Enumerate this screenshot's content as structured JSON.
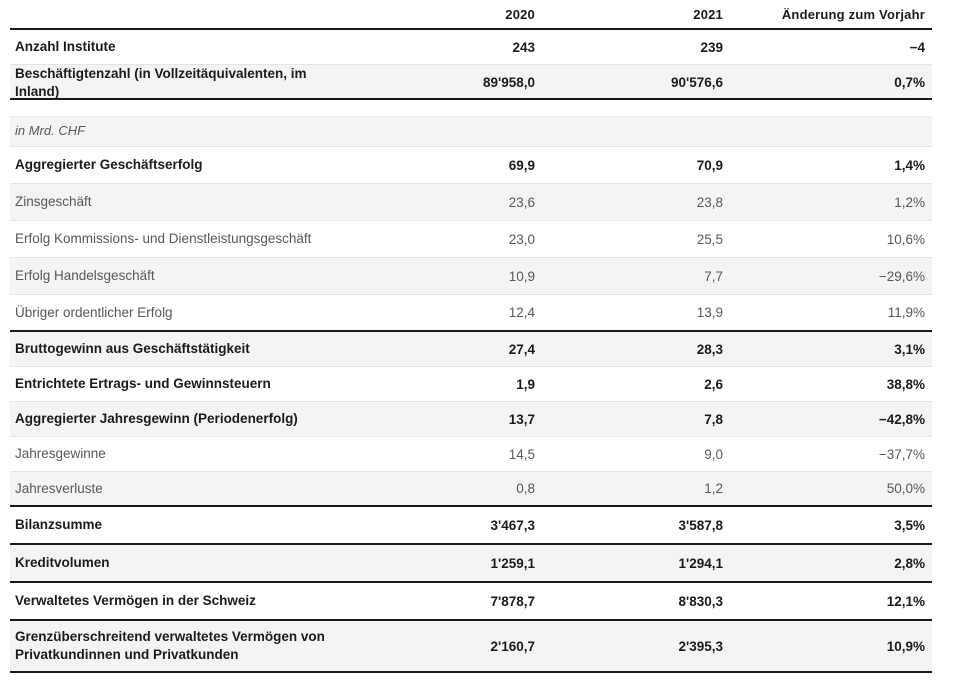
{
  "colors": {
    "text_primary": "#1a1b1e",
    "text_secondary": "#57585d",
    "row_alt_bg": "#f4f4f5",
    "divider_light": "#e4e4e6",
    "divider_dark": "#1a1a1a",
    "page_bg": "#ffffff"
  },
  "table": {
    "columns": [
      "",
      "2020",
      "2021",
      "Änderung zum Vorjahr"
    ],
    "rows": [
      {
        "label": "Anzahl Institute",
        "y2020": "243",
        "y2021": "239",
        "change": "−4",
        "bold": true,
        "italic": false,
        "bg": "white",
        "divider": "light",
        "size": "s",
        "spacer_after": false
      },
      {
        "label": "Beschäftigtenzahl (in Vollzeitäquivalenten, im Inland)",
        "y2020": "89'958,0",
        "y2021": "90'576,6",
        "change": "0,7%",
        "bold": true,
        "italic": false,
        "bg": "gray",
        "divider": "dark",
        "size": "s",
        "spacer_after": true
      },
      {
        "label": "in Mrd. CHF",
        "y2020": "",
        "y2021": "",
        "change": "",
        "bold": false,
        "italic": true,
        "bg": "gray",
        "divider": "light",
        "size": "sec",
        "spacer_after": false
      },
      {
        "label": "Aggregierter Geschäftserfolg",
        "y2020": "69,9",
        "y2021": "70,9",
        "change": "1,4%",
        "bold": true,
        "italic": false,
        "bg": "white",
        "divider": "light",
        "size": "m",
        "spacer_after": false
      },
      {
        "label": "Zinsgeschäft",
        "y2020": "23,6",
        "y2021": "23,8",
        "change": "1,2%",
        "bold": false,
        "italic": false,
        "bg": "gray",
        "divider": "light",
        "size": "m",
        "spacer_after": false
      },
      {
        "label": "Erfolg Kommissions- und Dienstleistungsgeschäft",
        "y2020": "23,0",
        "y2021": "25,5",
        "change": "10,6%",
        "bold": false,
        "italic": false,
        "bg": "white",
        "divider": "light",
        "size": "m",
        "spacer_after": false
      },
      {
        "label": "Erfolg Handelsgeschäft",
        "y2020": "10,9",
        "y2021": "7,7",
        "change": "−29,6%",
        "bold": false,
        "italic": false,
        "bg": "gray",
        "divider": "light",
        "size": "m",
        "spacer_after": false
      },
      {
        "label": "Übriger ordentlicher Erfolg",
        "y2020": "12,4",
        "y2021": "13,9",
        "change": "11,9%",
        "bold": false,
        "italic": false,
        "bg": "white",
        "divider": "dark",
        "size": "m",
        "spacer_after": false
      },
      {
        "label": "Bruttogewinn aus Geschäftstätigkeit",
        "y2020": "27,4",
        "y2021": "28,3",
        "change": "3,1%",
        "bold": true,
        "italic": false,
        "bg": "gray",
        "divider": "light",
        "size": "s",
        "spacer_after": false
      },
      {
        "label": "Entrichtete Ertrags- und Gewinnsteuern",
        "y2020": "1,9",
        "y2021": "2,6",
        "change": "38,8%",
        "bold": true,
        "italic": false,
        "bg": "white",
        "divider": "light",
        "size": "s",
        "spacer_after": false
      },
      {
        "label": "Aggregierter Jahresgewinn (Periodenerfolg)",
        "y2020": "13,7",
        "y2021": "7,8",
        "change": "−42,8%",
        "bold": true,
        "italic": false,
        "bg": "gray",
        "divider": "light",
        "size": "s",
        "spacer_after": false
      },
      {
        "label": "Jahresgewinne",
        "y2020": "14,5",
        "y2021": "9,0",
        "change": "−37,7%",
        "bold": false,
        "italic": false,
        "bg": "white",
        "divider": "light",
        "size": "s",
        "spacer_after": false
      },
      {
        "label": "Jahresverluste",
        "y2020": "0,8",
        "y2021": "1,2",
        "change": "50,0%",
        "bold": false,
        "italic": false,
        "bg": "gray",
        "divider": "dark",
        "size": "s",
        "spacer_after": false
      },
      {
        "label": "Bilanzsumme",
        "y2020": "3'467,3",
        "y2021": "3'587,8",
        "change": "3,5%",
        "bold": true,
        "italic": false,
        "bg": "white",
        "divider": "dark",
        "size": "l",
        "spacer_after": false
      },
      {
        "label": "Kreditvolumen",
        "y2020": "1'259,1",
        "y2021": "1'294,1",
        "change": "2,8%",
        "bold": true,
        "italic": false,
        "bg": "gray",
        "divider": "dark",
        "size": "l",
        "spacer_after": false
      },
      {
        "label": "Verwaltetes Vermögen in der Schweiz",
        "y2020": "7'878,7",
        "y2021": "8'830,3",
        "change": "12,1%",
        "bold": true,
        "italic": false,
        "bg": "white",
        "divider": "dark",
        "size": "l",
        "spacer_after": false
      },
      {
        "label": "Grenzüberschreitend verwaltetes Vermögen von Privatkundinnen und Privatkunden",
        "y2020": "2'160,7",
        "y2021": "2'395,3",
        "change": "10,9%",
        "bold": true,
        "italic": false,
        "bg": "gray",
        "divider": "dark",
        "size": "xl",
        "spacer_after": false
      }
    ]
  }
}
